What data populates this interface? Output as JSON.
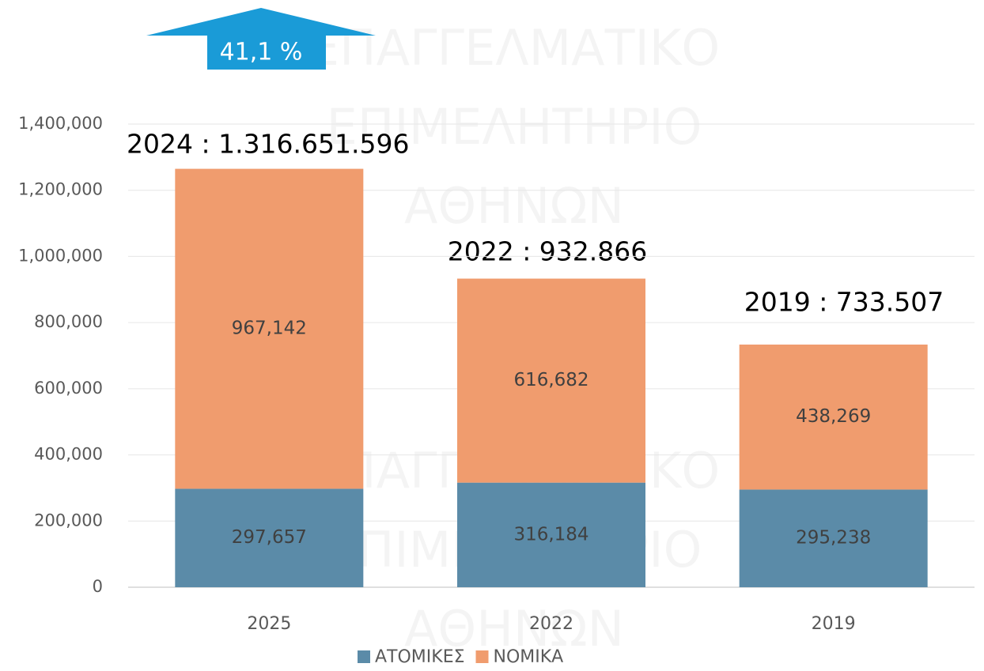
{
  "chart_data": {
    "type": "stacked_bar",
    "categories": [
      "2025",
      "2022",
      "2019"
    ],
    "series": [
      {
        "name": "ΑΤΟΜΙΚΕΣ",
        "color": "#5b8ba8",
        "values": [
          297657,
          316184,
          295238
        ],
        "value_labels": [
          "297,657",
          "316,184",
          "295,238"
        ]
      },
      {
        "name": "ΝΟΜΙΚΑ",
        "color": "#f09c6e",
        "values": [
          967142,
          616682,
          438269
        ],
        "value_labels": [
          "967,142",
          "616,682",
          "438,269"
        ]
      }
    ],
    "ylim": [
      0,
      1400000
    ],
    "yticks": [
      0,
      {
        "value": 200000,
        "label": "200,000"
      },
      {
        "value": 400000,
        "label": "400,000"
      },
      {
        "value": 600000,
        "label": "600,000"
      },
      {
        "value": 800000,
        "label": "800,000"
      },
      {
        "value": 1000000,
        "label": "1,000,000"
      },
      {
        "value": 1200000,
        "label": "1,200,000"
      },
      {
        "value": 1400000,
        "label": "1,400,000"
      }
    ],
    "grid": true,
    "legend": "bottom",
    "annotations": [
      "2024 : 1.316.651.596",
      "2022 : 932.866",
      "2019 : 733.507",
      "41,1 %"
    ],
    "watermark": [
      "ΕΠΑΓΓΕΛΜΑΤΙΚΟ",
      "ΕΠΙΜΕΛΗΤΗΡΙΟ",
      "ΑΘΗΝΩΝ"
    ]
  }
}
